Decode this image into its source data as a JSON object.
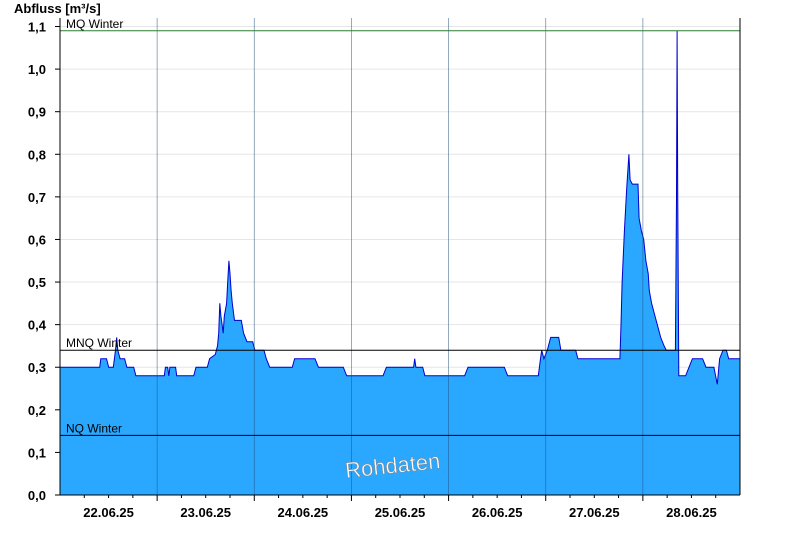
{
  "chart_data": {
    "type": "area",
    "ylabel": "Abfluss [m³/s]",
    "ylim": [
      0,
      1.12
    ],
    "y_ticks": [
      "0,0",
      "0,1",
      "0,2",
      "0,3",
      "0,4",
      "0,5",
      "0,6",
      "0,7",
      "0,8",
      "0,9",
      "1,0",
      "1,1"
    ],
    "x_range_days": [
      "21.06.25 12:00",
      "28.06.25 12:00"
    ],
    "x_tick_labels": [
      "22.06.25",
      "23.06.25",
      "24.06.25",
      "25.06.25",
      "26.06.25",
      "27.06.25",
      "28.06.25"
    ],
    "reference_lines": [
      {
        "label": "MQ Winter",
        "value": 1.09,
        "color": "#2e7d32"
      },
      {
        "label": "MNQ Winter",
        "value": 0.34,
        "color": "#000000"
      },
      {
        "label": "NQ Winter",
        "value": 0.14,
        "color": "#000000"
      }
    ],
    "series": [
      {
        "fill_color": "#2aa7ff",
        "line_color": "#0000cc",
        "points": [
          [
            0.0,
            0.3
          ],
          [
            0.35,
            0.3
          ],
          [
            0.36,
            0.32
          ],
          [
            0.41,
            0.32
          ],
          [
            0.43,
            0.3
          ],
          [
            0.47,
            0.3
          ],
          [
            0.49,
            0.34
          ],
          [
            0.5,
            0.37
          ],
          [
            0.51,
            0.34
          ],
          [
            0.53,
            0.32
          ],
          [
            0.57,
            0.32
          ],
          [
            0.59,
            0.3
          ],
          [
            0.65,
            0.3
          ],
          [
            0.67,
            0.28
          ],
          [
            0.92,
            0.28
          ],
          [
            0.93,
            0.3
          ],
          [
            0.95,
            0.3
          ],
          [
            0.96,
            0.28
          ],
          [
            0.97,
            0.3
          ],
          [
            1.02,
            0.3
          ],
          [
            1.03,
            0.28
          ],
          [
            1.18,
            0.28
          ],
          [
            1.2,
            0.3
          ],
          [
            1.3,
            0.3
          ],
          [
            1.32,
            0.32
          ],
          [
            1.37,
            0.33
          ],
          [
            1.39,
            0.35
          ],
          [
            1.4,
            0.38
          ],
          [
            1.41,
            0.45
          ],
          [
            1.42,
            0.42
          ],
          [
            1.43,
            0.4
          ],
          [
            1.44,
            0.38
          ],
          [
            1.45,
            0.42
          ],
          [
            1.47,
            0.45
          ],
          [
            1.48,
            0.5
          ],
          [
            1.49,
            0.55
          ],
          [
            1.5,
            0.52
          ],
          [
            1.51,
            0.48
          ],
          [
            1.52,
            0.45
          ],
          [
            1.54,
            0.41
          ],
          [
            1.6,
            0.41
          ],
          [
            1.62,
            0.38
          ],
          [
            1.65,
            0.36
          ],
          [
            1.7,
            0.36
          ],
          [
            1.72,
            0.34
          ],
          [
            1.8,
            0.34
          ],
          [
            1.82,
            0.32
          ],
          [
            1.85,
            0.3
          ],
          [
            2.05,
            0.3
          ],
          [
            2.07,
            0.32
          ],
          [
            2.25,
            0.32
          ],
          [
            2.28,
            0.3
          ],
          [
            2.5,
            0.3
          ],
          [
            2.53,
            0.28
          ],
          [
            2.85,
            0.28
          ],
          [
            2.88,
            0.3
          ],
          [
            3.12,
            0.3
          ],
          [
            3.13,
            0.32
          ],
          [
            3.14,
            0.3
          ],
          [
            3.2,
            0.3
          ],
          [
            3.22,
            0.28
          ],
          [
            3.57,
            0.28
          ],
          [
            3.6,
            0.3
          ],
          [
            3.92,
            0.3
          ],
          [
            3.95,
            0.28
          ],
          [
            4.22,
            0.28
          ],
          [
            4.24,
            0.32
          ],
          [
            4.25,
            0.34
          ],
          [
            4.26,
            0.33
          ],
          [
            4.27,
            0.32
          ],
          [
            4.3,
            0.34
          ],
          [
            4.33,
            0.37
          ],
          [
            4.4,
            0.37
          ],
          [
            4.42,
            0.34
          ],
          [
            4.55,
            0.34
          ],
          [
            4.57,
            0.32
          ],
          [
            4.94,
            0.32
          ],
          [
            4.95,
            0.4
          ],
          [
            4.96,
            0.5
          ],
          [
            4.98,
            0.62
          ],
          [
            5.0,
            0.72
          ],
          [
            5.02,
            0.8
          ],
          [
            5.03,
            0.74
          ],
          [
            5.05,
            0.73
          ],
          [
            5.1,
            0.73
          ],
          [
            5.11,
            0.65
          ],
          [
            5.13,
            0.62
          ],
          [
            5.15,
            0.6
          ],
          [
            5.17,
            0.55
          ],
          [
            5.19,
            0.52
          ],
          [
            5.2,
            0.48
          ],
          [
            5.22,
            0.45
          ],
          [
            5.25,
            0.42
          ],
          [
            5.27,
            0.4
          ],
          [
            5.3,
            0.37
          ],
          [
            5.33,
            0.35
          ],
          [
            5.35,
            0.34
          ],
          [
            5.43,
            0.34
          ],
          [
            5.44,
            0.7
          ],
          [
            5.445,
            1.09
          ],
          [
            5.45,
            0.72
          ],
          [
            5.46,
            0.28
          ],
          [
            5.52,
            0.28
          ],
          [
            5.55,
            0.3
          ],
          [
            5.58,
            0.32
          ],
          [
            5.67,
            0.32
          ],
          [
            5.7,
            0.3
          ],
          [
            5.77,
            0.3
          ],
          [
            5.8,
            0.26
          ],
          [
            5.82,
            0.32
          ],
          [
            5.85,
            0.34
          ],
          [
            5.88,
            0.34
          ],
          [
            5.9,
            0.32
          ],
          [
            5.95,
            0.32
          ],
          [
            6.0,
            0.32
          ]
        ]
      }
    ],
    "grid": true,
    "annotation": "Rohdaten"
  }
}
